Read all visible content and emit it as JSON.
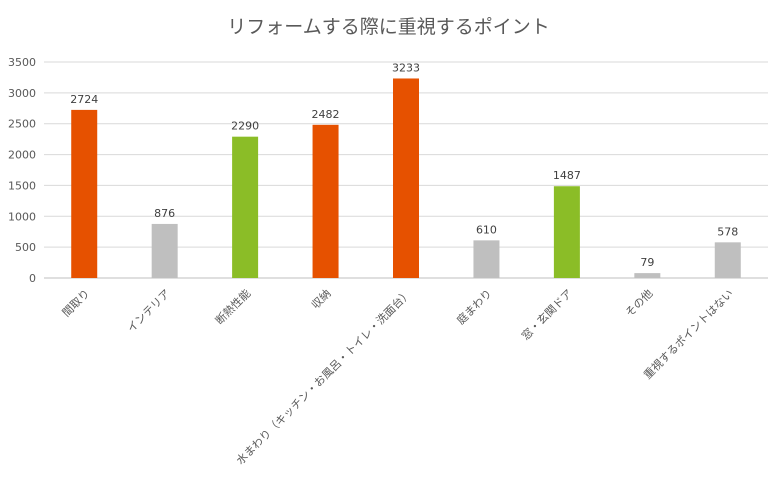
{
  "chart_data": {
    "type": "bar",
    "title": "リフォームする際に重視するポイント",
    "categories": [
      "間取り",
      "インテリア",
      "断熱性能",
      "収納",
      "水まわり（キッチン・お風呂・トイレ・洗面台）",
      "庭まわり",
      "窓・玄関ドア",
      "その他",
      "重視するポイントはない"
    ],
    "values": [
      2724,
      876,
      2290,
      2482,
      3233,
      610,
      1487,
      79,
      578
    ],
    "bar_colors": [
      "#e65100",
      "#bfbfbf",
      "#8bbd27",
      "#e65100",
      "#e65100",
      "#bfbfbf",
      "#8bbd27",
      "#bfbfbf",
      "#bfbfbf"
    ],
    "ylim": [
      0,
      3500
    ],
    "yticks": [
      0,
      500,
      1000,
      1500,
      2000,
      2500,
      3000,
      3500
    ],
    "grid": true,
    "legend": "none"
  }
}
